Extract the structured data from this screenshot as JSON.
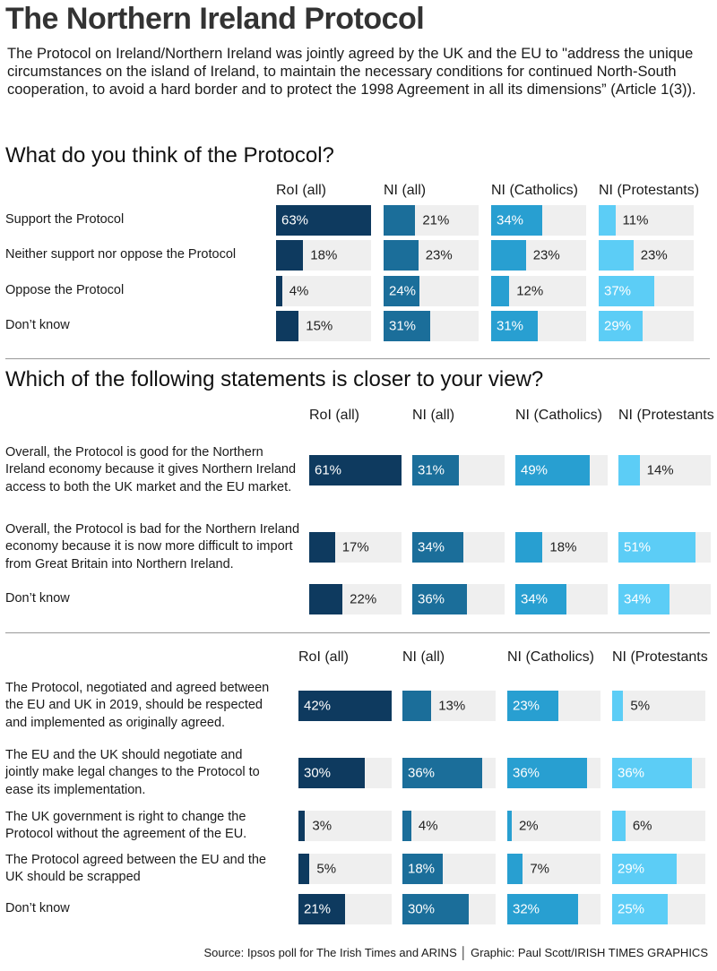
{
  "title": "The Northern Ireland Protocol",
  "intro": "The Protocol on Ireland/Northern Ireland was jointly agreed by the UK and the EU to \"address the unique circumstances on the island of Ireland, to maintain the necessary conditions for continued North-South cooperation, to avoid a hard border and to protect the 1998 Agreement in all its dimensions” (Article 1(3)).",
  "source": "Source: Ipsos poll for The Irish Times and ARINS │ Graphic: Paul Scott/IRISH TIMES GRAPHICS",
  "chart_data": [
    {
      "type": "bar",
      "title": "What do you think of the Protocol?",
      "categories": [
        "Support the Protocol",
        "Neither support nor oppose the Protocol",
        "Oppose the Protocol",
        "Don’t know"
      ],
      "xlim": [
        0,
        63
      ],
      "series": [
        {
          "name": "RoI (all)",
          "color": "#0e3a5f",
          "values": [
            63,
            18,
            4,
            15
          ],
          "value_labels": [
            "63%",
            "18%",
            "4%",
            "15%"
          ]
        },
        {
          "name": "NI (all)",
          "color": "#1b6e9a",
          "values": [
            21,
            23,
            24,
            31
          ],
          "value_labels": [
            "21%",
            "23%",
            "24%",
            "31%"
          ]
        },
        {
          "name": "NI (Catholics)",
          "color": "#289fd1",
          "values": [
            34,
            23,
            12,
            31
          ],
          "value_labels": [
            "34%",
            "23%",
            "12%",
            "31%"
          ]
        },
        {
          "name": "NI (Protestants)",
          "color": "#5ccdf6",
          "values": [
            11,
            23,
            37,
            29
          ],
          "value_labels": [
            "11%",
            "23%",
            "37%",
            "29%"
          ]
        }
      ]
    },
    {
      "type": "bar",
      "title": "Which of the following statements is closer to your view?",
      "categories": [
        "Overall, the Protocol is good for the Northern Ireland economy because it gives Northern Ireland access to both the UK market and the EU market.",
        "Overall, the Protocol is bad for the Northern Ireland economy because it is now more difficult to import from Great Britain into Northern Ireland.",
        "Don’t know"
      ],
      "xlim": [
        0,
        61
      ],
      "series": [
        {
          "name": "RoI (all)",
          "color": "#0e3a5f",
          "values": [
            61,
            17,
            22
          ],
          "value_labels": [
            "61%",
            "17%",
            "22%"
          ]
        },
        {
          "name": "NI (all)",
          "color": "#1b6e9a",
          "values": [
            31,
            34,
            36
          ],
          "value_labels": [
            "31%",
            "34%",
            "36%"
          ]
        },
        {
          "name": "NI (Catholics)",
          "color": "#289fd1",
          "values": [
            49,
            18,
            34
          ],
          "value_labels": [
            "49%",
            "18%",
            "34%"
          ]
        },
        {
          "name": "NI (Protestants",
          "color": "#5ccdf6",
          "values": [
            14,
            51,
            34
          ],
          "value_labels": [
            "14%",
            "51%",
            "34%"
          ]
        }
      ]
    },
    {
      "type": "bar",
      "categories": [
        "The Protocol, negotiated and agreed between the EU and UK in 2019, should be respected and implemented as originally agreed.",
        "The EU and the UK should negotiate and jointly make legal changes to the Protocol to ease its implementation.",
        "The UK government is right to change the Protocol without the agreement of the EU.",
        "The Protocol agreed between the EU and the UK should be scrapped",
        "Don’t know"
      ],
      "xlim": [
        0,
        42
      ],
      "series": [
        {
          "name": "RoI (all)",
          "color": "#0e3a5f",
          "values": [
            42,
            30,
            3,
            5,
            21
          ],
          "value_labels": [
            "42%",
            "30%",
            "3%",
            "5%",
            "21%"
          ]
        },
        {
          "name": "NI (all)",
          "color": "#1b6e9a",
          "values": [
            13,
            36,
            4,
            18,
            30
          ],
          "value_labels": [
            "13%",
            "36%",
            "4%",
            "18%",
            "30%"
          ]
        },
        {
          "name": "NI (Catholics)",
          "color": "#289fd1",
          "values": [
            23,
            36,
            2,
            7,
            32
          ],
          "value_labels": [
            "23%",
            "36%",
            "2%",
            "7%",
            "32%"
          ]
        },
        {
          "name": "NI (Protestants",
          "color": "#5ccdf6",
          "values": [
            5,
            36,
            6,
            29,
            25
          ],
          "value_labels": [
            "5%",
            "36%",
            "6%",
            "29%",
            "25%"
          ]
        }
      ]
    }
  ]
}
